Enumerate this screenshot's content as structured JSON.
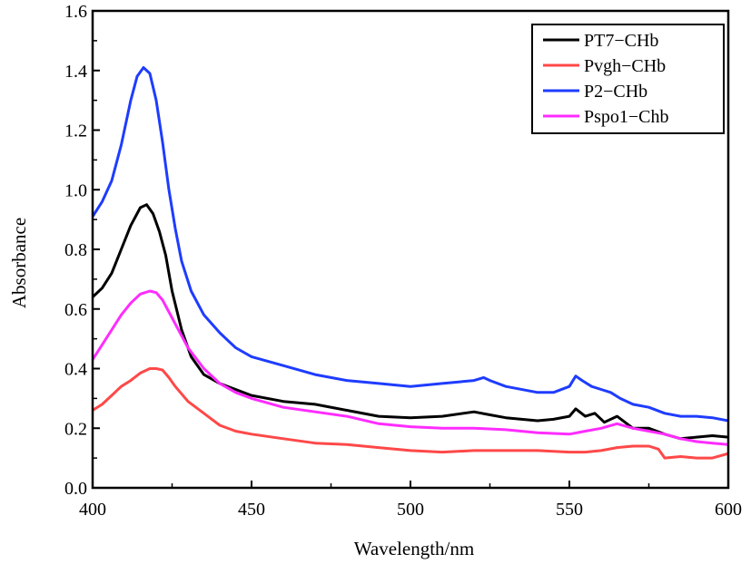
{
  "chart_data": {
    "type": "line",
    "title": "",
    "xlabel": "Wavelength/nm",
    "ylabel": "Absorbance",
    "xlim": [
      400,
      600
    ],
    "ylim": [
      0.0,
      1.6
    ],
    "xticks": [
      "400",
      "450",
      "500",
      "550",
      "600"
    ],
    "yticks": [
      "0.0",
      "0.2",
      "0.4",
      "0.6",
      "0.8",
      "1.0",
      "1.2",
      "1.4",
      "1.6"
    ],
    "grid": false,
    "legend_position": "top-right",
    "series": [
      {
        "name": "PT7−CHb",
        "color": "#000000",
        "x": [
          400,
          403,
          406,
          409,
          412,
          415,
          417,
          419,
          421,
          423,
          425,
          428,
          431,
          435,
          440,
          445,
          450,
          460,
          470,
          480,
          490,
          500,
          510,
          520,
          525,
          530,
          540,
          545,
          550,
          552,
          555,
          558,
          561,
          565,
          570,
          575,
          580,
          585,
          590,
          595,
          600
        ],
        "y": [
          0.64,
          0.67,
          0.72,
          0.8,
          0.88,
          0.94,
          0.95,
          0.92,
          0.86,
          0.78,
          0.66,
          0.53,
          0.44,
          0.38,
          0.35,
          0.33,
          0.31,
          0.29,
          0.28,
          0.26,
          0.24,
          0.235,
          0.24,
          0.255,
          0.245,
          0.235,
          0.225,
          0.23,
          0.24,
          0.265,
          0.24,
          0.25,
          0.22,
          0.24,
          0.2,
          0.2,
          0.18,
          0.165,
          0.17,
          0.175,
          0.17
        ]
      },
      {
        "name": "Pvgh−CHb",
        "color": "#ff4848",
        "x": [
          400,
          403,
          406,
          409,
          412,
          415,
          418,
          420,
          422,
          424,
          426,
          430,
          435,
          440,
          445,
          450,
          460,
          470,
          480,
          490,
          500,
          510,
          520,
          530,
          540,
          550,
          555,
          560,
          565,
          570,
          575,
          578,
          580,
          585,
          590,
          595,
          600
        ],
        "y": [
          0.26,
          0.28,
          0.31,
          0.34,
          0.36,
          0.385,
          0.4,
          0.4,
          0.395,
          0.37,
          0.34,
          0.29,
          0.25,
          0.21,
          0.19,
          0.18,
          0.165,
          0.15,
          0.145,
          0.135,
          0.125,
          0.12,
          0.125,
          0.125,
          0.125,
          0.12,
          0.12,
          0.125,
          0.135,
          0.14,
          0.14,
          0.13,
          0.1,
          0.105,
          0.1,
          0.1,
          0.115
        ]
      },
      {
        "name": "P2−CHb",
        "color": "#1e3cff",
        "x": [
          400,
          403,
          406,
          409,
          412,
          414,
          416,
          418,
          420,
          422,
          424,
          426,
          428,
          431,
          435,
          440,
          445,
          450,
          460,
          470,
          480,
          490,
          500,
          510,
          520,
          523,
          525,
          530,
          540,
          545,
          550,
          552,
          554,
          557,
          560,
          563,
          566,
          570,
          575,
          580,
          585,
          590,
          595,
          600
        ],
        "y": [
          0.91,
          0.96,
          1.03,
          1.15,
          1.3,
          1.38,
          1.41,
          1.39,
          1.3,
          1.16,
          1.0,
          0.87,
          0.76,
          0.66,
          0.58,
          0.52,
          0.47,
          0.44,
          0.41,
          0.38,
          0.36,
          0.35,
          0.34,
          0.35,
          0.36,
          0.37,
          0.36,
          0.34,
          0.32,
          0.32,
          0.34,
          0.375,
          0.36,
          0.34,
          0.33,
          0.32,
          0.3,
          0.28,
          0.27,
          0.25,
          0.24,
          0.24,
          0.235,
          0.225
        ]
      },
      {
        "name": "Pspo1−Chb",
        "color": "#ff2cff",
        "x": [
          400,
          403,
          406,
          409,
          412,
          415,
          418,
          420,
          422,
          424,
          426,
          430,
          435,
          440,
          445,
          450,
          460,
          470,
          480,
          490,
          500,
          510,
          520,
          530,
          540,
          550,
          555,
          560,
          565,
          570,
          575,
          580,
          585,
          590,
          595,
          600
        ],
        "y": [
          0.43,
          0.48,
          0.53,
          0.58,
          0.62,
          0.65,
          0.66,
          0.655,
          0.63,
          0.59,
          0.55,
          0.47,
          0.4,
          0.35,
          0.32,
          0.3,
          0.27,
          0.255,
          0.24,
          0.215,
          0.205,
          0.2,
          0.2,
          0.195,
          0.185,
          0.18,
          0.19,
          0.2,
          0.215,
          0.2,
          0.19,
          0.18,
          0.165,
          0.155,
          0.15,
          0.145
        ]
      }
    ]
  }
}
